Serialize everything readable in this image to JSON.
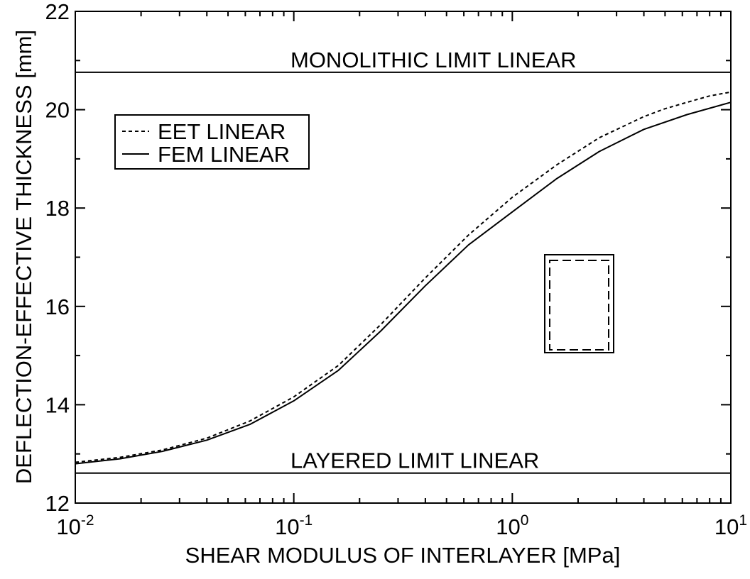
{
  "chart_data": {
    "type": "line",
    "xlabel": "SHEAR MODULUS OF INTERLAYER [MPa]",
    "ylabel": "DEFLECTION-EFFECTIVE THICKNESS [mm]",
    "x_scale": "log",
    "xlim": [
      0.01,
      10
    ],
    "ylim": [
      12,
      22
    ],
    "x_ticks": [
      {
        "base": "10",
        "exp": "-2"
      },
      {
        "base": "10",
        "exp": "-1"
      },
      {
        "base": "10",
        "exp": "0"
      },
      {
        "base": "10",
        "exp": "1"
      }
    ],
    "y_ticks": [
      "12",
      "14",
      "16",
      "18",
      "20",
      "22"
    ],
    "grid": false,
    "legend_position": "top-left",
    "series": [
      {
        "name": "EET LINEAR",
        "style": "dashed",
        "x": [
          0.01,
          0.016,
          0.025,
          0.04,
          0.063,
          0.1,
          0.16,
          0.25,
          0.4,
          0.63,
          1.0,
          1.6,
          2.5,
          4.0,
          5.0,
          6.3,
          8.0,
          10.0
        ],
        "y": [
          12.83,
          12.93,
          13.08,
          13.32,
          13.67,
          14.16,
          14.8,
          15.63,
          16.58,
          17.45,
          18.22,
          18.88,
          19.43,
          19.86,
          20.02,
          20.15,
          20.28,
          20.36
        ]
      },
      {
        "name": "FEM LINEAR",
        "style": "solid",
        "x": [
          0.01,
          0.016,
          0.025,
          0.04,
          0.063,
          0.1,
          0.16,
          0.25,
          0.4,
          0.63,
          1.0,
          1.6,
          2.5,
          4.0,
          6.3,
          10.0
        ],
        "y": [
          12.8,
          12.9,
          13.05,
          13.28,
          13.6,
          14.08,
          14.7,
          15.5,
          16.42,
          17.25,
          17.92,
          18.6,
          19.15,
          19.6,
          19.9,
          20.15
        ]
      }
    ],
    "reference_lines": [
      {
        "label": "MONOLITHIC LIMIT LINEAR",
        "y": 20.76
      },
      {
        "label": "LAYERED LIMIT LINEAR",
        "y": 12.61
      }
    ]
  }
}
